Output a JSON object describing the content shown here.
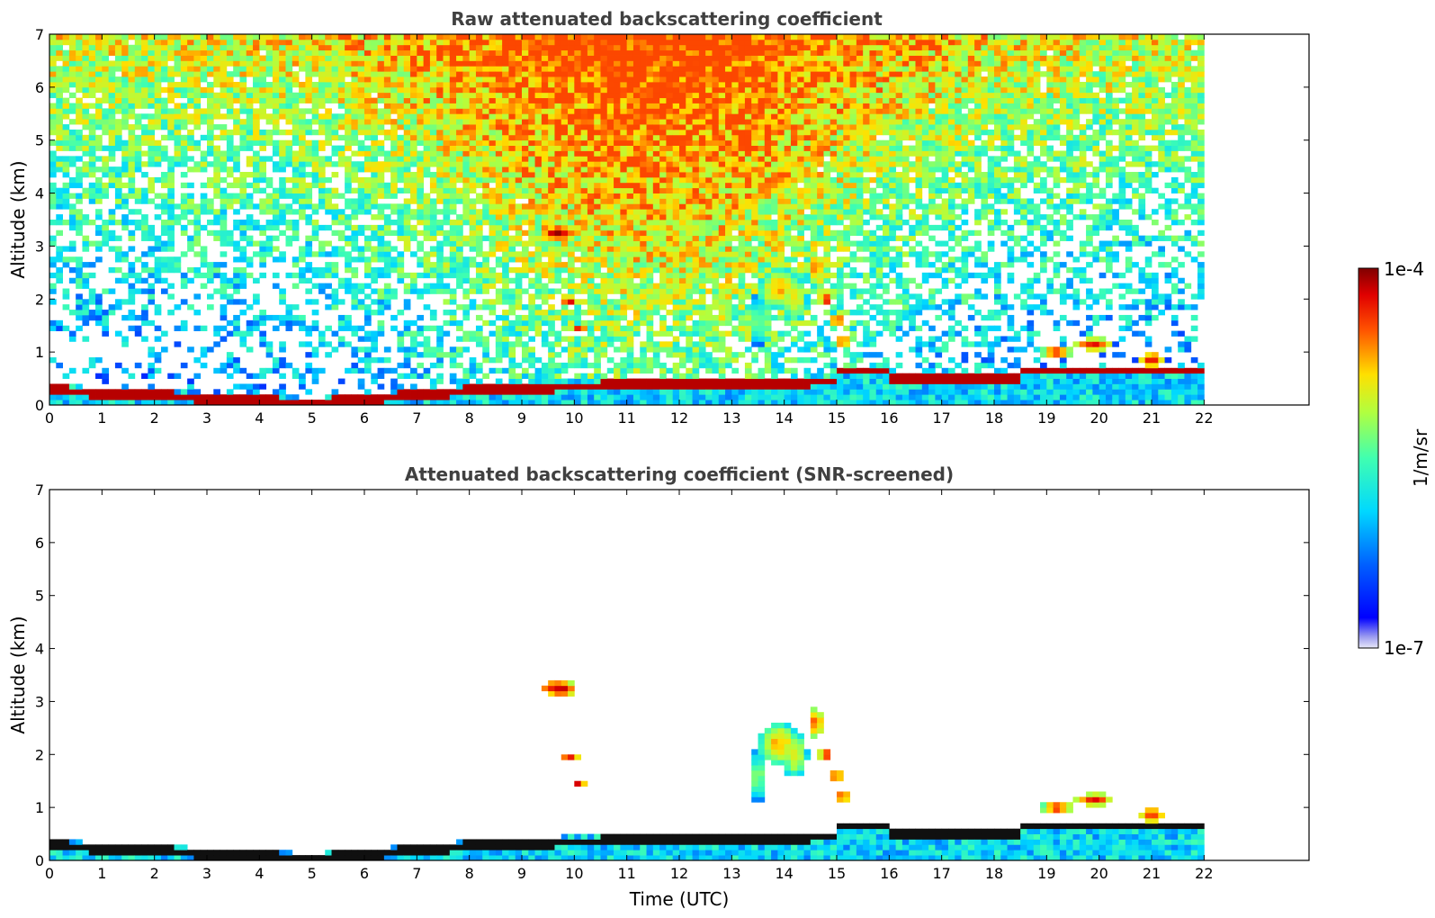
{
  "chart_data": [
    {
      "type": "heatmap",
      "title": "Raw attenuated backscattering coefficient",
      "xlabel": "",
      "ylabel": "Altitude (km)",
      "xlim": [
        0,
        24
      ],
      "ylim": [
        0,
        7
      ],
      "xticks": [
        "0",
        "1",
        "2",
        "3",
        "4",
        "5",
        "6",
        "7",
        "8",
        "9",
        "10",
        "11",
        "12",
        "13",
        "14",
        "15",
        "16",
        "17",
        "18",
        "19",
        "20",
        "21",
        "22"
      ],
      "yticks": [
        "0",
        "1",
        "2",
        "3",
        "4",
        "5",
        "6",
        "7"
      ],
      "data_end_time": 22,
      "screened": false,
      "grid": false
    },
    {
      "type": "heatmap",
      "title": "Attenuated backscattering coefficient (SNR-screened)",
      "xlabel": "Time (UTC)",
      "ylabel": "Altitude (km)",
      "xlim": [
        0,
        24
      ],
      "ylim": [
        0,
        7
      ],
      "xticks": [
        "0",
        "1",
        "2",
        "3",
        "4",
        "5",
        "6",
        "7",
        "8",
        "9",
        "10",
        "11",
        "12",
        "13",
        "14",
        "15",
        "16",
        "17",
        "18",
        "19",
        "20",
        "21",
        "22"
      ],
      "yticks": [
        "0",
        "1",
        "2",
        "3",
        "4",
        "5",
        "6",
        "7"
      ],
      "data_end_time": 22,
      "screened": true,
      "grid": false
    }
  ],
  "colorbar": {
    "label": "1/m/sr",
    "max_label": "1e-4",
    "min_label": "1e-7",
    "colormap": "jet",
    "scale": "log"
  }
}
